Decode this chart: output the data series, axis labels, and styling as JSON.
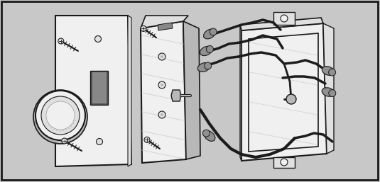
{
  "bg": "#c8c8c8",
  "white": "#f0f0f0",
  "light_gray": "#e0e0e0",
  "mid_gray": "#b8b8b8",
  "dark_gray": "#888888",
  "black": "#1a1a1a",
  "wire_black": "#1c1c1c",
  "connector_gray": "#909090",
  "shadow_gray": "#aaaaaa",
  "figw": 5.35,
  "figh": 2.57,
  "dpi": 100
}
